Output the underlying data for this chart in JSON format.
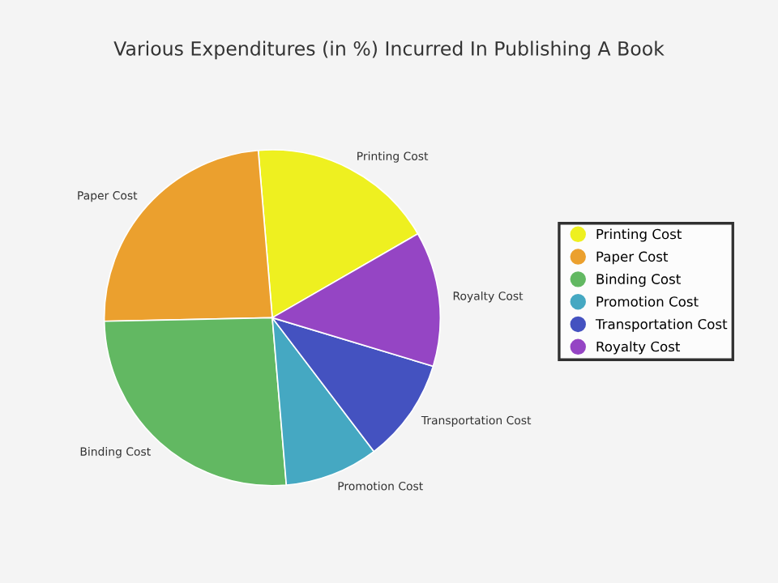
{
  "chart_data": {
    "type": "pie",
    "title": "Various Expenditures (in %) Incurred In Publishing A Book",
    "categories": [
      "Printing Cost",
      "Paper Cost",
      "Binding Cost",
      "Promotion Cost",
      "Transportation Cost",
      "Royalty Cost"
    ],
    "values": [
      18,
      24,
      26,
      9,
      10,
      13
    ],
    "colors": [
      "#eef020",
      "#eba02e",
      "#62b862",
      "#45a8c2",
      "#4452c0",
      "#9545c4"
    ],
    "legend": "right"
  }
}
